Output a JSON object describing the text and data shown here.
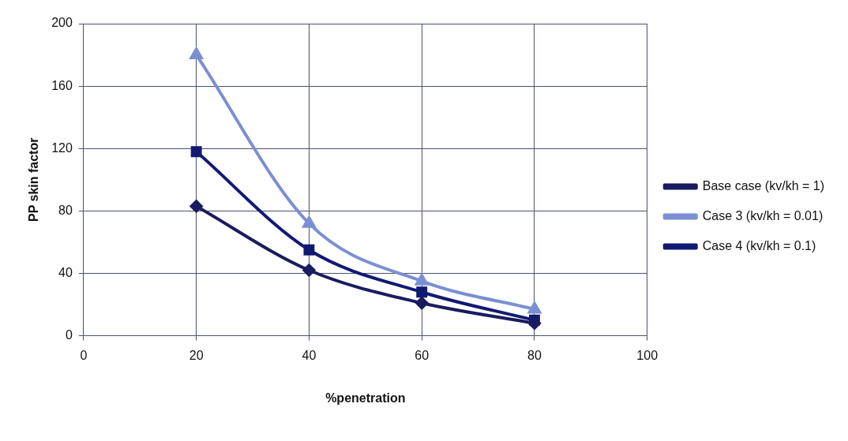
{
  "chart_data": {
    "type": "line",
    "xlabel": "%penetration",
    "ylabel": "PP skin factor",
    "x": [
      20,
      40,
      60,
      80
    ],
    "series": [
      {
        "name": "Base case (kv/kh = 1)",
        "color": "#1b1b60",
        "marker": "diamond",
        "values": [
          83,
          42,
          21,
          8
        ]
      },
      {
        "name": "Case 3 (kv/kh = 0.01)",
        "color": "#7b8fd2",
        "marker": "triangle",
        "values": [
          180,
          72,
          35,
          17
        ]
      },
      {
        "name": "Case 4 (kv/kh = 0.1)",
        "color": "#111a72",
        "marker": "square",
        "values": [
          118,
          55,
          28,
          10
        ]
      }
    ],
    "xlim": [
      0,
      100
    ],
    "xticks": [
      0,
      20,
      40,
      60,
      80,
      100
    ],
    "ylim": [
      0,
      200
    ],
    "yticks": [
      0,
      40,
      80,
      120,
      160,
      200
    ],
    "grid": true,
    "legend": "right"
  }
}
